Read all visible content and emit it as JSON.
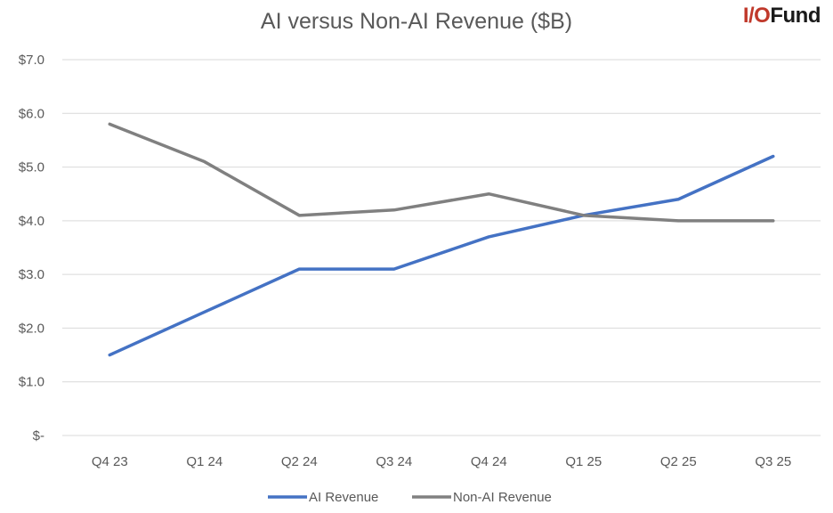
{
  "logo": {
    "prefix": "I/O",
    "suffix": "Fund"
  },
  "colors": {
    "ai": "#4472c4",
    "non_ai": "#808080"
  },
  "chart_data": {
    "type": "line",
    "title": "AI versus Non-AI Revenue ($B)",
    "categories": [
      "Q4 23",
      "Q1 24",
      "Q2 24",
      "Q3 24",
      "Q4 24",
      "Q1 25",
      "Q2 25",
      "Q3 25"
    ],
    "series": [
      {
        "name": "AI Revenue",
        "values": [
          1.5,
          2.3,
          3.1,
          3.1,
          3.7,
          4.1,
          4.4,
          5.2
        ]
      },
      {
        "name": "Non-AI Revenue",
        "values": [
          5.8,
          5.1,
          4.1,
          4.2,
          4.5,
          4.1,
          4.0,
          4.0
        ]
      }
    ],
    "yticks": [
      "$-",
      "$1.0",
      "$2.0",
      "$3.0",
      "$4.0",
      "$5.0",
      "$6.0",
      "$7.0"
    ],
    "ylim": [
      0,
      7
    ],
    "grid": true,
    "legend_position": "bottom-center"
  }
}
